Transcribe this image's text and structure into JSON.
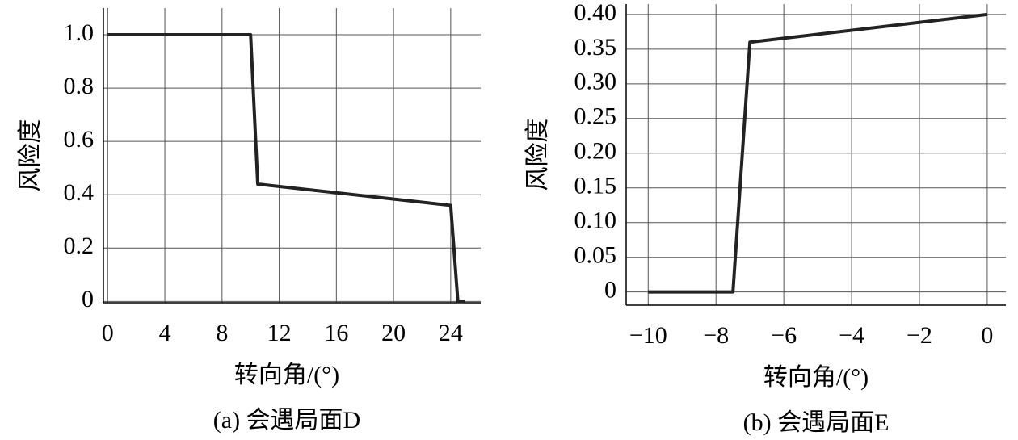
{
  "chart_data": [
    {
      "type": "line",
      "ylabel": "风险度",
      "xlabel": "转向角/(°)",
      "caption": "(a) 会遇局面D",
      "x": [
        0,
        10,
        10.5,
        24,
        24.5,
        25
      ],
      "series": [
        {
          "color": "#222222",
          "values": [
            1,
            1,
            0.44,
            0.36,
            0,
            0
          ]
        }
      ],
      "xlim": [
        -0.3,
        26.1
      ],
      "ylim": [
        -0.005,
        1.1
      ],
      "xticks": [
        0,
        4,
        8,
        12,
        16,
        20,
        24
      ],
      "yticks": [
        0,
        0.2,
        0.4,
        0.6,
        0.8,
        {
          "value": 1,
          "label": "1.0"
        }
      ],
      "grid": true
    },
    {
      "type": "line",
      "ylabel": "风险度",
      "xlabel": "转向角/(°)",
      "caption": "(b) 会遇局面E",
      "x": [
        -10,
        -7.5,
        -7,
        0
      ],
      "series": [
        {
          "color": "#222222",
          "values": [
            0,
            0,
            0.36,
            0.4
          ]
        }
      ],
      "xlim": [
        -10.65,
        0.55
      ],
      "ylim": [
        -0.019,
        0.415
      ],
      "xticks": [
        {
          "value": -10,
          "label": "−10"
        },
        {
          "value": -8,
          "label": "−8"
        },
        {
          "value": -6,
          "label": "−6"
        },
        {
          "value": -4,
          "label": "−4"
        },
        {
          "value": -2,
          "label": "−2"
        },
        0
      ],
      "yticks": [
        0,
        0.05,
        {
          "value": 0.1,
          "label": "0.10"
        },
        0.15,
        {
          "value": 0.2,
          "label": "0.20"
        },
        0.25,
        {
          "value": 0.3,
          "label": "0.30"
        },
        0.35,
        {
          "value": 0.4,
          "label": "0.40"
        }
      ],
      "grid": true
    }
  ]
}
